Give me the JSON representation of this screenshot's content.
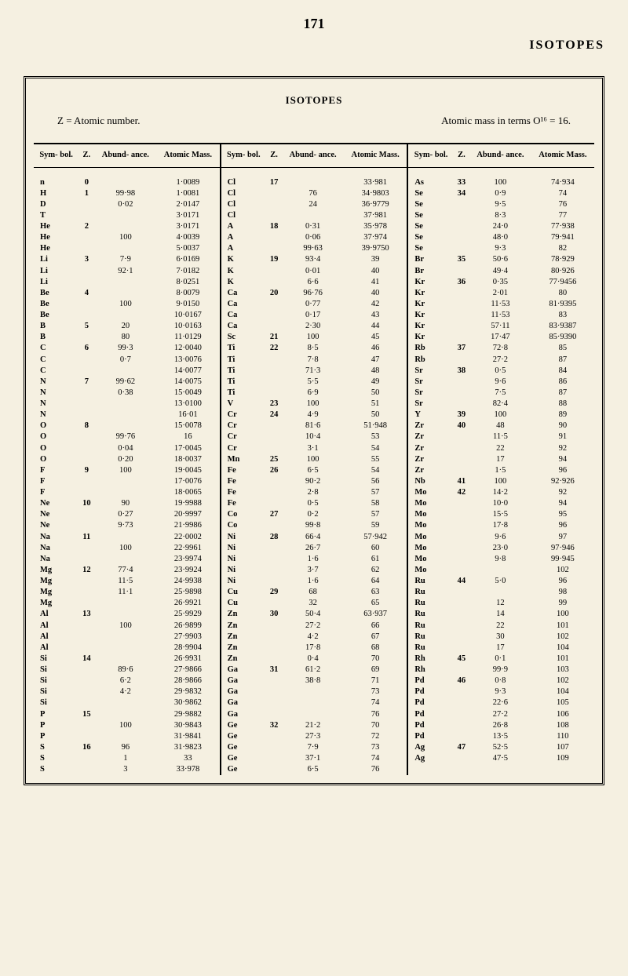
{
  "page_number": "171",
  "header": "ISOTOPES",
  "table_title": "ISOTOPES",
  "subtitle_left": "Z = Atomic number.",
  "subtitle_right": "Atomic mass in terms O¹⁶ = 16.",
  "columns": {
    "sym": "Sym-\nbol.",
    "z": "Z.",
    "abund": "Abund-\nance.",
    "mass": "Atomic\nMass."
  },
  "rows": [
    {
      "s1": "n",
      "z1": "0",
      "a1": "",
      "m1": "1·0089",
      "s2": "Cl",
      "z2": "17",
      "a2": "",
      "m2": "33·981",
      "s3": "As",
      "z3": "33",
      "a3": "100",
      "m3": "74·934"
    },
    {
      "s1": "H",
      "z1": "1",
      "a1": "99·98",
      "m1": "1·0081",
      "s2": "Cl",
      "z2": "",
      "a2": "76",
      "m2": "34·9803",
      "s3": "Se",
      "z3": "34",
      "a3": "0·9",
      "m3": "74"
    },
    {
      "s1": "D",
      "z1": "",
      "a1": "0·02",
      "m1": "2·0147",
      "s2": "Cl",
      "z2": "",
      "a2": "24",
      "m2": "36·9779",
      "s3": "Se",
      "z3": "",
      "a3": "9·5",
      "m3": "76"
    },
    {
      "s1": "T",
      "z1": "",
      "a1": "",
      "m1": "3·0171",
      "s2": "Cl",
      "z2": "",
      "a2": "",
      "m2": "37·981",
      "s3": "Se",
      "z3": "",
      "a3": "8·3",
      "m3": "77"
    },
    {
      "s1": "He",
      "z1": "2",
      "a1": "",
      "m1": "3·0171",
      "s2": "A",
      "z2": "18",
      "a2": "0·31",
      "m2": "35·978",
      "s3": "Se",
      "z3": "",
      "a3": "24·0",
      "m3": "77·938"
    },
    {
      "s1": "He",
      "z1": "",
      "a1": "100",
      "m1": "4·0039",
      "s2": "A",
      "z2": "",
      "a2": "0·06",
      "m2": "37·974",
      "s3": "Se",
      "z3": "",
      "a3": "48·0",
      "m3": "79·941"
    },
    {
      "s1": "He",
      "z1": "",
      "a1": "",
      "m1": "5·0037",
      "s2": "A",
      "z2": "",
      "a2": "99·63",
      "m2": "39·9750",
      "s3": "Se",
      "z3": "",
      "a3": "9·3",
      "m3": "82"
    },
    {
      "s1": "Li",
      "z1": "3",
      "a1": "7·9",
      "m1": "6·0169",
      "s2": "K",
      "z2": "19",
      "a2": "93·4",
      "m2": "39",
      "s3": "Br",
      "z3": "35",
      "a3": "50·6",
      "m3": "78·929"
    },
    {
      "s1": "Li",
      "z1": "",
      "a1": "92·1",
      "m1": "7·0182",
      "s2": "K",
      "z2": "",
      "a2": "0·01",
      "m2": "40",
      "s3": "Br",
      "z3": "",
      "a3": "49·4",
      "m3": "80·926"
    },
    {
      "s1": "Li",
      "z1": "",
      "a1": "",
      "m1": "8·0251",
      "s2": "K",
      "z2": "",
      "a2": "6·6",
      "m2": "41",
      "s3": "Kr",
      "z3": "36",
      "a3": "0·35",
      "m3": "77·9456"
    },
    {
      "s1": "Be",
      "z1": "4",
      "a1": "",
      "m1": "8·0079",
      "s2": "Ca",
      "z2": "20",
      "a2": "96·76",
      "m2": "40",
      "s3": "Kr",
      "z3": "",
      "a3": "2·01",
      "m3": "80"
    },
    {
      "s1": "Be",
      "z1": "",
      "a1": "100",
      "m1": "9·0150",
      "s2": "Ca",
      "z2": "",
      "a2": "0·77",
      "m2": "42",
      "s3": "Kr",
      "z3": "",
      "a3": "11·53",
      "m3": "81·9395"
    },
    {
      "s1": "Be",
      "z1": "",
      "a1": "",
      "m1": "10·0167",
      "s2": "Ca",
      "z2": "",
      "a2": "0·17",
      "m2": "43",
      "s3": "Kr",
      "z3": "",
      "a3": "11·53",
      "m3": "83"
    },
    {
      "s1": "B",
      "z1": "5",
      "a1": "20",
      "m1": "10·0163",
      "s2": "Ca",
      "z2": "",
      "a2": "2·30",
      "m2": "44",
      "s3": "Kr",
      "z3": "",
      "a3": "57·11",
      "m3": "83·9387"
    },
    {
      "s1": "B",
      "z1": "",
      "a1": "80",
      "m1": "11·0129",
      "s2": "Sc",
      "z2": "21",
      "a2": "100",
      "m2": "45",
      "s3": "Kr",
      "z3": "",
      "a3": "17·47",
      "m3": "85·9390"
    },
    {
      "s1": "C",
      "z1": "6",
      "a1": "99·3",
      "m1": "12·0040",
      "s2": "Ti",
      "z2": "22",
      "a2": "8·5",
      "m2": "46",
      "s3": "Rb",
      "z3": "37",
      "a3": "72·8",
      "m3": "85"
    },
    {
      "s1": "C",
      "z1": "",
      "a1": "0·7",
      "m1": "13·0076",
      "s2": "Ti",
      "z2": "",
      "a2": "7·8",
      "m2": "47",
      "s3": "Rb",
      "z3": "",
      "a3": "27·2",
      "m3": "87"
    },
    {
      "s1": "C",
      "z1": "",
      "a1": "",
      "m1": "14·0077",
      "s2": "Ti",
      "z2": "",
      "a2": "71·3",
      "m2": "48",
      "s3": "Sr",
      "z3": "38",
      "a3": "0·5",
      "m3": "84"
    },
    {
      "s1": "N",
      "z1": "7",
      "a1": "99·62",
      "m1": "14·0075",
      "s2": "Ti",
      "z2": "",
      "a2": "5·5",
      "m2": "49",
      "s3": "Sr",
      "z3": "",
      "a3": "9·6",
      "m3": "86"
    },
    {
      "s1": "N",
      "z1": "",
      "a1": "0·38",
      "m1": "15·0049",
      "s2": "Ti",
      "z2": "",
      "a2": "6·9",
      "m2": "50",
      "s3": "Sr",
      "z3": "",
      "a3": "7·5",
      "m3": "87"
    },
    {
      "s1": "N",
      "z1": "",
      "a1": "",
      "m1": "13·0100",
      "s2": "V",
      "z2": "23",
      "a2": "100",
      "m2": "51",
      "s3": "Sr",
      "z3": "",
      "a3": "82·4",
      "m3": "88"
    },
    {
      "s1": "N",
      "z1": "",
      "a1": "",
      "m1": "16·01",
      "s2": "Cr",
      "z2": "24",
      "a2": "4·9",
      "m2": "50",
      "s3": "Y",
      "z3": "39",
      "a3": "100",
      "m3": "89"
    },
    {
      "s1": "O",
      "z1": "8",
      "a1": "",
      "m1": "15·0078",
      "s2": "Cr",
      "z2": "",
      "a2": "81·6",
      "m2": "51·948",
      "s3": "Zr",
      "z3": "40",
      "a3": "48",
      "m3": "90"
    },
    {
      "s1": "O",
      "z1": "",
      "a1": "99·76",
      "m1": "16",
      "s2": "Cr",
      "z2": "",
      "a2": "10·4",
      "m2": "53",
      "s3": "Zr",
      "z3": "",
      "a3": "11·5",
      "m3": "91"
    },
    {
      "s1": "O",
      "z1": "",
      "a1": "0·04",
      "m1": "17·0045",
      "s2": "Cr",
      "z2": "",
      "a2": "3·1",
      "m2": "54",
      "s3": "Zr",
      "z3": "",
      "a3": "22",
      "m3": "92"
    },
    {
      "s1": "O",
      "z1": "",
      "a1": "0·20",
      "m1": "18·0037",
      "s2": "Mn",
      "z2": "25",
      "a2": "100",
      "m2": "55",
      "s3": "Zr",
      "z3": "",
      "a3": "17",
      "m3": "94"
    },
    {
      "s1": "F",
      "z1": "9",
      "a1": "100",
      "m1": "19·0045",
      "s2": "Fe",
      "z2": "26",
      "a2": "6·5",
      "m2": "54",
      "s3": "Zr",
      "z3": "",
      "a3": "1·5",
      "m3": "96"
    },
    {
      "s1": "F",
      "z1": "",
      "a1": "",
      "m1": "17·0076",
      "s2": "Fe",
      "z2": "",
      "a2": "90·2",
      "m2": "56",
      "s3": "Nb",
      "z3": "41",
      "a3": "100",
      "m3": "92·926"
    },
    {
      "s1": "F",
      "z1": "",
      "a1": "",
      "m1": "18·0065",
      "s2": "Fe",
      "z2": "",
      "a2": "2·8",
      "m2": "57",
      "s3": "Mo",
      "z3": "42",
      "a3": "14·2",
      "m3": "92"
    },
    {
      "s1": "Ne",
      "z1": "10",
      "a1": "90",
      "m1": "19·9988",
      "s2": "Fe",
      "z2": "",
      "a2": "0·5",
      "m2": "58",
      "s3": "Mo",
      "z3": "",
      "a3": "10·0",
      "m3": "94"
    },
    {
      "s1": "Ne",
      "z1": "",
      "a1": "0·27",
      "m1": "20·9997",
      "s2": "Co",
      "z2": "27",
      "a2": "0·2",
      "m2": "57",
      "s3": "Mo",
      "z3": "",
      "a3": "15·5",
      "m3": "95"
    },
    {
      "s1": "Ne",
      "z1": "",
      "a1": "9·73",
      "m1": "21·9986",
      "s2": "Co",
      "z2": "",
      "a2": "99·8",
      "m2": "59",
      "s3": "Mo",
      "z3": "",
      "a3": "17·8",
      "m3": "96"
    },
    {
      "s1": "Na",
      "z1": "11",
      "a1": "",
      "m1": "22·0002",
      "s2": "Ni",
      "z2": "28",
      "a2": "66·4",
      "m2": "57·942",
      "s3": "Mo",
      "z3": "",
      "a3": "9·6",
      "m3": "97"
    },
    {
      "s1": "Na",
      "z1": "",
      "a1": "100",
      "m1": "22·9961",
      "s2": "Ni",
      "z2": "",
      "a2": "26·7",
      "m2": "60",
      "s3": "Mo",
      "z3": "",
      "a3": "23·0",
      "m3": "97·946"
    },
    {
      "s1": "Na",
      "z1": "",
      "a1": "",
      "m1": "23·9974",
      "s2": "Ni",
      "z2": "",
      "a2": "1·6",
      "m2": "61",
      "s3": "Mo",
      "z3": "",
      "a3": "9·8",
      "m3": "99·945"
    },
    {
      "s1": "Mg",
      "z1": "12",
      "a1": "77·4",
      "m1": "23·9924",
      "s2": "Ni",
      "z2": "",
      "a2": "3·7",
      "m2": "62",
      "s3": "Mo",
      "z3": "",
      "a3": "",
      "m3": "102"
    },
    {
      "s1": "Mg",
      "z1": "",
      "a1": "11·5",
      "m1": "24·9938",
      "s2": "Ni",
      "z2": "",
      "a2": "1·6",
      "m2": "64",
      "s3": "Ru",
      "z3": "44",
      "a3": "5·0",
      "m3": "96"
    },
    {
      "s1": "Mg",
      "z1": "",
      "a1": "11·1",
      "m1": "25·9898",
      "s2": "Cu",
      "z2": "29",
      "a2": "68",
      "m2": "63",
      "s3": "Ru",
      "z3": "",
      "a3": "",
      "m3": "98"
    },
    {
      "s1": "Mg",
      "z1": "",
      "a1": "",
      "m1": "26·9921",
      "s2": "Cu",
      "z2": "",
      "a2": "32",
      "m2": "65",
      "s3": "Ru",
      "z3": "",
      "a3": "12",
      "m3": "99"
    },
    {
      "s1": "Al",
      "z1": "13",
      "a1": "",
      "m1": "25·9929",
      "s2": "Zn",
      "z2": "30",
      "a2": "50·4",
      "m2": "63·937",
      "s3": "Ru",
      "z3": "",
      "a3": "14",
      "m3": "100"
    },
    {
      "s1": "Al",
      "z1": "",
      "a1": "100",
      "m1": "26·9899",
      "s2": "Zn",
      "z2": "",
      "a2": "27·2",
      "m2": "66",
      "s3": "Ru",
      "z3": "",
      "a3": "22",
      "m3": "101"
    },
    {
      "s1": "Al",
      "z1": "",
      "a1": "",
      "m1": "27·9903",
      "s2": "Zn",
      "z2": "",
      "a2": "4·2",
      "m2": "67",
      "s3": "Ru",
      "z3": "",
      "a3": "30",
      "m3": "102"
    },
    {
      "s1": "Al",
      "z1": "",
      "a1": "",
      "m1": "28·9904",
      "s2": "Zn",
      "z2": "",
      "a2": "17·8",
      "m2": "68",
      "s3": "Ru",
      "z3": "",
      "a3": "17",
      "m3": "104"
    },
    {
      "s1": "Si",
      "z1": "14",
      "a1": "",
      "m1": "26·9931",
      "s2": "Zn",
      "z2": "",
      "a2": "0·4",
      "m2": "70",
      "s3": "Rh",
      "z3": "45",
      "a3": "0·1",
      "m3": "101"
    },
    {
      "s1": "Si",
      "z1": "",
      "a1": "89·6",
      "m1": "27·9866",
      "s2": "Ga",
      "z2": "31",
      "a2": "61·2",
      "m2": "69",
      "s3": "Rh",
      "z3": "",
      "a3": "99·9",
      "m3": "103"
    },
    {
      "s1": "Si",
      "z1": "",
      "a1": "6·2",
      "m1": "28·9866",
      "s2": "Ga",
      "z2": "",
      "a2": "38·8",
      "m2": "71",
      "s3": "Pd",
      "z3": "46",
      "a3": "0·8",
      "m3": "102"
    },
    {
      "s1": "Si",
      "z1": "",
      "a1": "4·2",
      "m1": "29·9832",
      "s2": "Ga",
      "z2": "",
      "a2": "",
      "m2": "73",
      "s3": "Pd",
      "z3": "",
      "a3": "9·3",
      "m3": "104"
    },
    {
      "s1": "Si",
      "z1": "",
      "a1": "",
      "m1": "30·9862",
      "s2": "Ga",
      "z2": "",
      "a2": "",
      "m2": "74",
      "s3": "Pd",
      "z3": "",
      "a3": "22·6",
      "m3": "105"
    },
    {
      "s1": "P",
      "z1": "15",
      "a1": "",
      "m1": "29·9882",
      "s2": "Ga",
      "z2": "",
      "a2": "",
      "m2": "76",
      "s3": "Pd",
      "z3": "",
      "a3": "27·2",
      "m3": "106"
    },
    {
      "s1": "P",
      "z1": "",
      "a1": "100",
      "m1": "30·9843",
      "s2": "Ge",
      "z2": "32",
      "a2": "21·2",
      "m2": "70",
      "s3": "Pd",
      "z3": "",
      "a3": "26·8",
      "m3": "108"
    },
    {
      "s1": "P",
      "z1": "",
      "a1": "",
      "m1": "31·9841",
      "s2": "Ge",
      "z2": "",
      "a2": "27·3",
      "m2": "72",
      "s3": "Pd",
      "z3": "",
      "a3": "13·5",
      "m3": "110"
    },
    {
      "s1": "S",
      "z1": "16",
      "a1": "96",
      "m1": "31·9823",
      "s2": "Ge",
      "z2": "",
      "a2": "7·9",
      "m2": "73",
      "s3": "Ag",
      "z3": "47",
      "a3": "52·5",
      "m3": "107"
    },
    {
      "s1": "S",
      "z1": "",
      "a1": "1",
      "m1": "33",
      "s2": "Ge",
      "z2": "",
      "a2": "37·1",
      "m2": "74",
      "s3": "Ag",
      "z3": "",
      "a3": "47·5",
      "m3": "109"
    },
    {
      "s1": "S",
      "z1": "",
      "a1": "3",
      "m1": "33·978",
      "s2": "Ge",
      "z2": "",
      "a2": "6·5",
      "m2": "76",
      "s3": "",
      "z3": "",
      "a3": "",
      "m3": ""
    }
  ]
}
